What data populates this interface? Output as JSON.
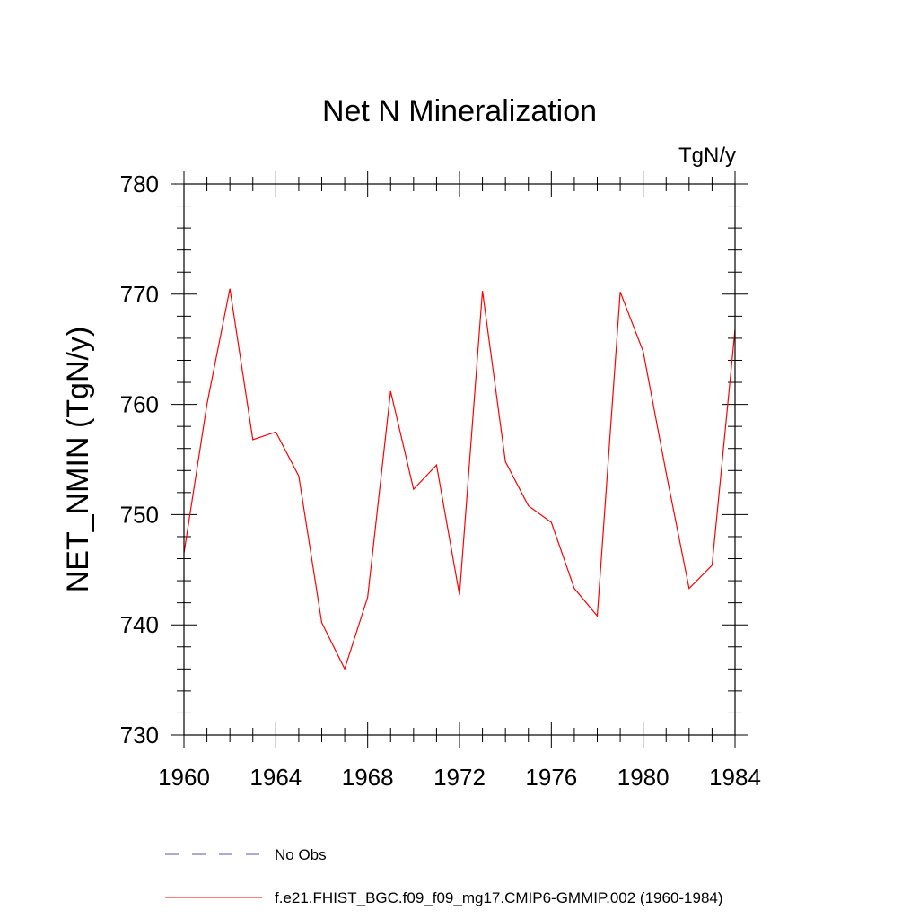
{
  "chart_data": {
    "type": "line",
    "title": "Net N Mineralization",
    "units_label": "TgN/y",
    "xlabel": "",
    "ylabel": "NET_NMIN  (TgN/y)",
    "xlim": [
      1960,
      1984
    ],
    "ylim": [
      730,
      780
    ],
    "x_major_ticks": [
      1960,
      1964,
      1968,
      1972,
      1976,
      1980,
      1984
    ],
    "x_minor_step": 1,
    "y_major_ticks": [
      730,
      740,
      750,
      760,
      770,
      780
    ],
    "y_minor_step": 2,
    "grid": false,
    "legend_position": "bottom",
    "x": [
      1960,
      1961,
      1962,
      1963,
      1964,
      1965,
      1966,
      1967,
      1968,
      1969,
      1970,
      1971,
      1972,
      1973,
      1974,
      1975,
      1976,
      1977,
      1978,
      1979,
      1980,
      1981,
      1982,
      1983,
      1984
    ],
    "series": [
      {
        "name": "f.e21.FHIST_BGC.f09_f09_mg17.CMIP6-GMMIP.002 (1960-1984)",
        "color": "#ff0000",
        "style": "solid",
        "values": [
          746.5,
          760.0,
          770.5,
          756.8,
          757.5,
          753.5,
          740.2,
          736.0,
          742.5,
          761.2,
          752.3,
          754.5,
          742.7,
          770.3,
          754.8,
          750.8,
          749.3,
          743.3,
          740.8,
          770.2,
          764.8,
          753.8,
          743.3,
          745.4,
          766.8
        ]
      }
    ],
    "legend": [
      {
        "label": "No Obs",
        "color": "#5555aa",
        "style": "dashed"
      },
      {
        "label": "f.e21.FHIST_BGC.f09_f09_mg17.CMIP6-GMMIP.002 (1960-1984)",
        "color": "#ff0000",
        "style": "solid"
      }
    ]
  }
}
